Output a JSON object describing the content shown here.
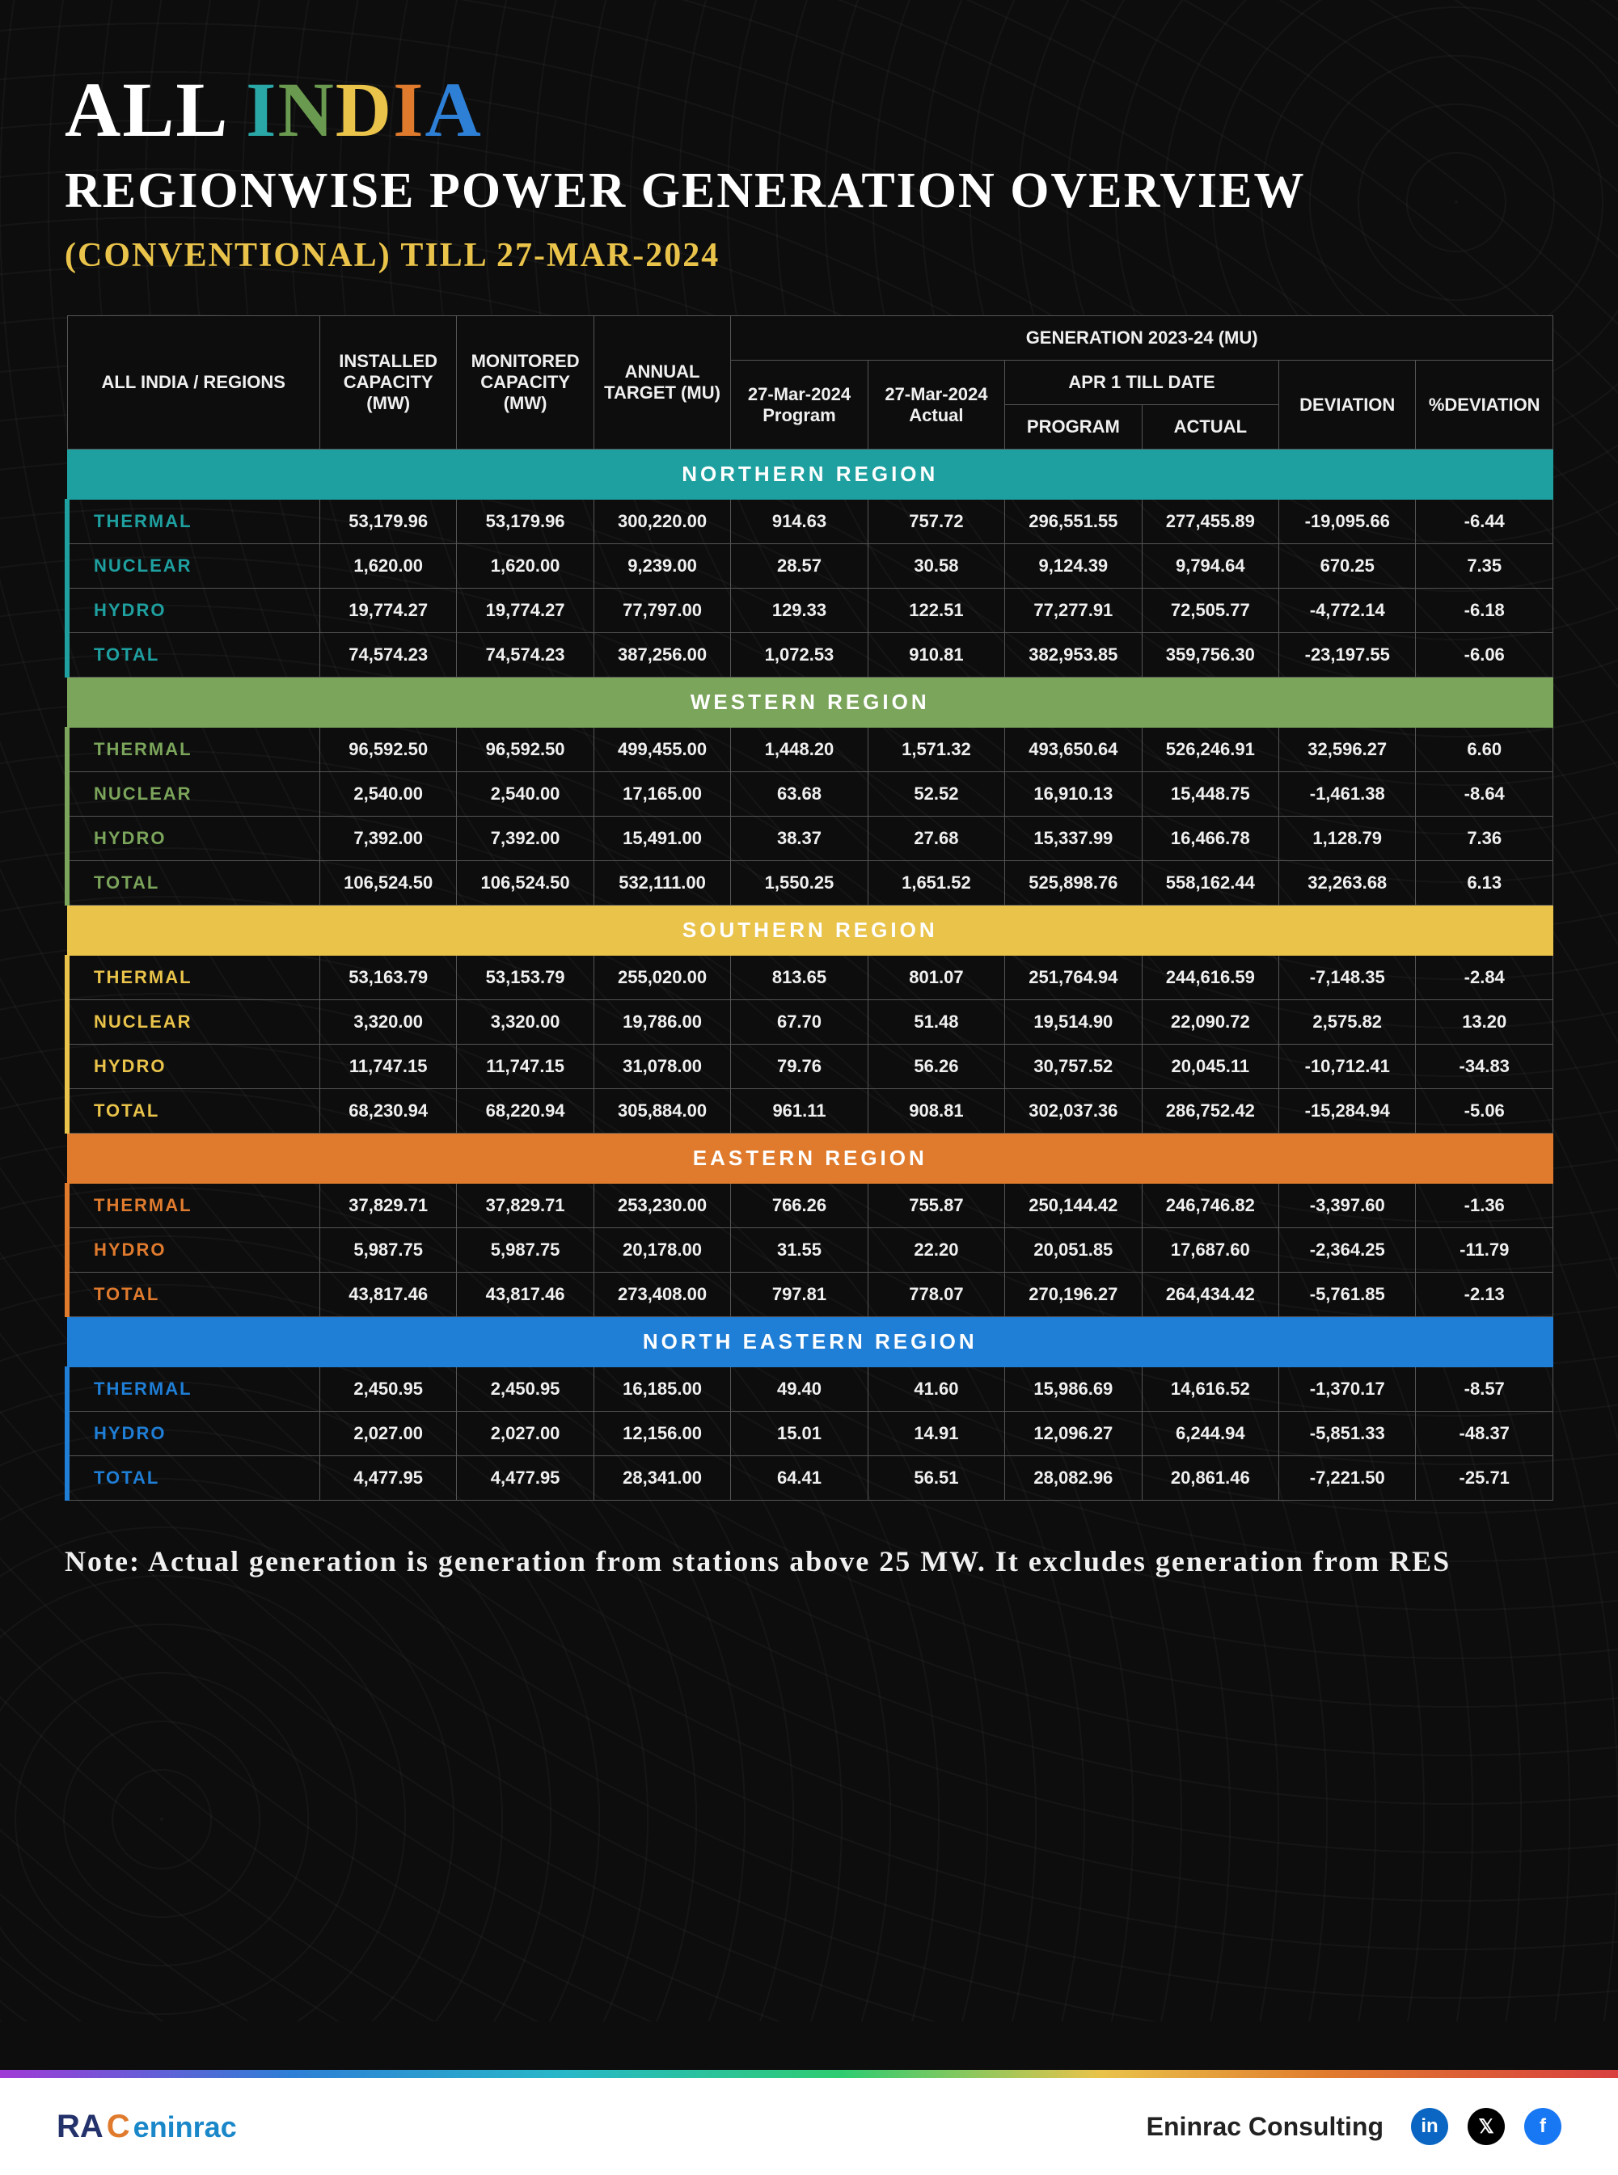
{
  "title": {
    "all": "ALL",
    "india": "INDIA",
    "line2": "REGIONWISE POWER GENERATION OVERVIEW",
    "line3": "(CONVENTIONAL) TILL 27-MAR-2024"
  },
  "columns": {
    "c0_width": 17,
    "others_width": 9.22,
    "c0": "ALL INDIA / REGIONS",
    "c1": "INSTALLED CAPACITY (MW)",
    "c2": "MONITORED CAPACITY (MW)",
    "c3": "ANNUAL TARGET (MU)",
    "gen_group": "GENERATION 2023-24 (MU)",
    "c4": "27-Mar-2024 Program",
    "c5": "27-Mar-2024 Actual",
    "apr_group": "APR 1 TILL DATE",
    "c6": "PROGRAM",
    "c7": "ACTUAL",
    "c8": "DEVIATION",
    "c9": "%DEVIATION"
  },
  "row_labels": {
    "thermal": "THERMAL",
    "nuclear": "NUCLEAR",
    "hydro": "HYDRO",
    "total": "TOTAL"
  },
  "regions": [
    {
      "name": "NORTHERN REGION",
      "bg": "#1fa0a0",
      "accent": "#1fa0a0",
      "rows": [
        {
          "key": "thermal",
          "cells": [
            "53,179.96",
            "53,179.96",
            "300,220.00",
            "914.63",
            "757.72",
            "296,551.55",
            "277,455.89",
            "-19,095.66",
            "-6.44"
          ]
        },
        {
          "key": "nuclear",
          "cells": [
            "1,620.00",
            "1,620.00",
            "9,239.00",
            "28.57",
            "30.58",
            "9,124.39",
            "9,794.64",
            "670.25",
            "7.35"
          ]
        },
        {
          "key": "hydro",
          "cells": [
            "19,774.27",
            "19,774.27",
            "77,797.00",
            "129.33",
            "122.51",
            "77,277.91",
            "72,505.77",
            "-4,772.14",
            "-6.18"
          ]
        },
        {
          "key": "total",
          "cells": [
            "74,574.23",
            "74,574.23",
            "387,256.00",
            "1,072.53",
            "910.81",
            "382,953.85",
            "359,756.30",
            "-23,197.55",
            "-6.06"
          ]
        }
      ]
    },
    {
      "name": "WESTERN REGION",
      "bg": "#7ba55b",
      "accent": "#7ba55b",
      "rows": [
        {
          "key": "thermal",
          "cells": [
            "96,592.50",
            "96,592.50",
            "499,455.00",
            "1,448.20",
            "1,571.32",
            "493,650.64",
            "526,246.91",
            "32,596.27",
            "6.60"
          ]
        },
        {
          "key": "nuclear",
          "cells": [
            "2,540.00",
            "2,540.00",
            "17,165.00",
            "63.68",
            "52.52",
            "16,910.13",
            "15,448.75",
            "-1,461.38",
            "-8.64"
          ]
        },
        {
          "key": "hydro",
          "cells": [
            "7,392.00",
            "7,392.00",
            "15,491.00",
            "38.37",
            "27.68",
            "15,337.99",
            "16,466.78",
            "1,128.79",
            "7.36"
          ]
        },
        {
          "key": "total",
          "cells": [
            "106,524.50",
            "106,524.50",
            "532,111.00",
            "1,550.25",
            "1,651.52",
            "525,898.76",
            "558,162.44",
            "32,263.68",
            "6.13"
          ]
        }
      ]
    },
    {
      "name": "SOUTHERN REGION",
      "bg": "#e9c34a",
      "accent": "#e9c34a",
      "rows": [
        {
          "key": "thermal",
          "cells": [
            "53,163.79",
            "53,153.79",
            "255,020.00",
            "813.65",
            "801.07",
            "251,764.94",
            "244,616.59",
            "-7,148.35",
            "-2.84"
          ]
        },
        {
          "key": "nuclear",
          "cells": [
            "3,320.00",
            "3,320.00",
            "19,786.00",
            "67.70",
            "51.48",
            "19,514.90",
            "22,090.72",
            "2,575.82",
            "13.20"
          ]
        },
        {
          "key": "hydro",
          "cells": [
            "11,747.15",
            "11,747.15",
            "31,078.00",
            "79.76",
            "56.26",
            "30,757.52",
            "20,045.11",
            "-10,712.41",
            "-34.83"
          ]
        },
        {
          "key": "total",
          "cells": [
            "68,230.94",
            "68,220.94",
            "305,884.00",
            "961.11",
            "908.81",
            "302,037.36",
            "286,752.42",
            "-15,284.94",
            "-5.06"
          ]
        }
      ]
    },
    {
      "name": "EASTERN REGION",
      "bg": "#e07b2e",
      "accent": "#e07b2e",
      "rows": [
        {
          "key": "thermal",
          "cells": [
            "37,829.71",
            "37,829.71",
            "253,230.00",
            "766.26",
            "755.87",
            "250,144.42",
            "246,746.82",
            "-3,397.60",
            "-1.36"
          ]
        },
        {
          "key": "hydro",
          "cells": [
            "5,987.75",
            "5,987.75",
            "20,178.00",
            "31.55",
            "22.20",
            "20,051.85",
            "17,687.60",
            "-2,364.25",
            "-11.79"
          ]
        },
        {
          "key": "total",
          "cells": [
            "43,817.46",
            "43,817.46",
            "273,408.00",
            "797.81",
            "778.07",
            "270,196.27",
            "264,434.42",
            "-5,761.85",
            "-2.13"
          ]
        }
      ]
    },
    {
      "name": "NORTH EASTERN REGION",
      "bg": "#1f7ed6",
      "accent": "#1f7ed6",
      "rows": [
        {
          "key": "thermal",
          "cells": [
            "2,450.95",
            "2,450.95",
            "16,185.00",
            "49.40",
            "41.60",
            "15,986.69",
            "14,616.52",
            "-1,370.17",
            "-8.57"
          ]
        },
        {
          "key": "hydro",
          "cells": [
            "2,027.00",
            "2,027.00",
            "12,156.00",
            "15.01",
            "14.91",
            "12,096.27",
            "6,244.94",
            "-5,851.33",
            "-48.37"
          ]
        },
        {
          "key": "total",
          "cells": [
            "4,477.95",
            "4,477.95",
            "28,341.00",
            "64.41",
            "56.51",
            "28,082.96",
            "20,861.46",
            "-7,221.50",
            "-25.71"
          ]
        }
      ]
    }
  ],
  "note": "Note: Actual generation is generation from stations above 25 MW. It excludes generation from RES",
  "footer": {
    "logo_ra": "RA",
    "logo_c": "C",
    "logo_brand": "eninrac",
    "company": "Eninrac Consulting",
    "linkedin": "in",
    "x": "𝕏",
    "fb": "f"
  },
  "style": {
    "header_fontsize": 22,
    "cell_fontsize": 22,
    "region_fontsize": 26
  }
}
